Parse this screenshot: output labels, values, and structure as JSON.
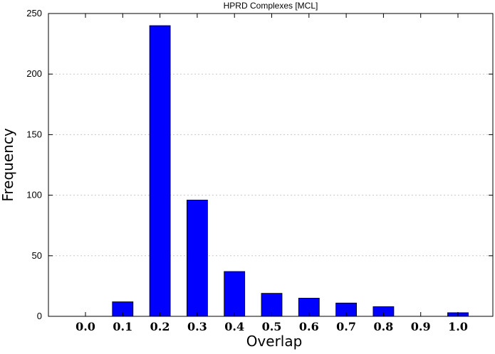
{
  "chart_data": {
    "type": "bar",
    "title": "HPRD Complexes [MCL]",
    "xlabel": "Overlap",
    "ylabel": "Frequency",
    "categories": [
      "0.0",
      "0.1",
      "0.2",
      "0.3",
      "0.4",
      "0.5",
      "0.6",
      "0.7",
      "0.8",
      "0.9",
      "1.0"
    ],
    "values": [
      0,
      12,
      240,
      96,
      37,
      19,
      15,
      11,
      8,
      0,
      3
    ],
    "ylim": [
      0,
      250
    ],
    "yticks": [
      "0",
      "50",
      "100",
      "150",
      "200",
      "250"
    ],
    "grid": "horizontal dotted",
    "legend": "none",
    "colors": {
      "bar_fill": "#0000ff",
      "bar_stroke": "#000000",
      "grid": "#c8c8c8",
      "axis": "#000000"
    }
  }
}
